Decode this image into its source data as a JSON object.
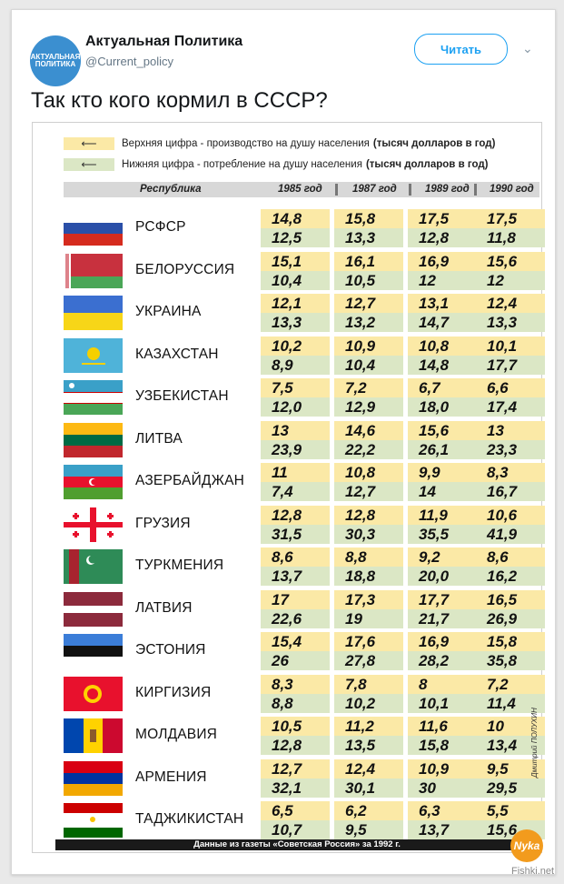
{
  "account": {
    "avatar_text": "АКТУАЛЬНАЯ ПОЛИТИКА",
    "name": "Актуальная Политика",
    "handle": "@Current_policy",
    "follow_label": "Читать"
  },
  "tweet": {
    "text": "Так кто кого кормил в СССР?"
  },
  "infographic": {
    "legend_top": {
      "arrow": "⟵",
      "text": "Верхняя цифра - производство на душу населения",
      "bold": "(тысяч долларов в год)"
    },
    "legend_bottom": {
      "arrow": "⟵",
      "text": "Нижняя цифра - потребление на душу населения",
      "bold": "(тысяч долларов в год)"
    },
    "headers": [
      "Республика",
      "1985 год",
      "1987 год",
      "1989 год",
      "1990 год"
    ],
    "rows": [
      {
        "name": "РСФСР",
        "top": [
          "14,8",
          "15,8",
          "17,5",
          "17,5"
        ],
        "bottom": [
          "12,5",
          "13,3",
          "12,8",
          "11,8"
        ]
      },
      {
        "name": "БЕЛОРУССИЯ",
        "top": [
          "15,1",
          "16,1",
          "16,9",
          "15,6"
        ],
        "bottom": [
          "10,4",
          "10,5",
          "12",
          "12"
        ]
      },
      {
        "name": "УКРАИНА",
        "top": [
          "12,1",
          "12,7",
          "13,1",
          "12,4"
        ],
        "bottom": [
          "13,3",
          "13,2",
          "14,7",
          "13,3"
        ]
      },
      {
        "name": "КАЗАХСТАН",
        "top": [
          "10,2",
          "10,9",
          "10,8",
          "10,1"
        ],
        "bottom": [
          "8,9",
          "10,4",
          "14,8",
          "17,7"
        ]
      },
      {
        "name": "УЗБЕКИСТАН",
        "top": [
          "7,5",
          "7,2",
          "6,7",
          "6,6"
        ],
        "bottom": [
          "12,0",
          "12,9",
          "18,0",
          "17,4"
        ]
      },
      {
        "name": "ЛИТВА",
        "top": [
          "13",
          "14,6",
          "15,6",
          "13"
        ],
        "bottom": [
          "23,9",
          "22,2",
          "26,1",
          "23,3"
        ]
      },
      {
        "name": "АЗЕРБАЙДЖАН",
        "top": [
          "11",
          "10,8",
          "9,9",
          "8,3"
        ],
        "bottom": [
          "7,4",
          "12,7",
          "14",
          "16,7"
        ]
      },
      {
        "name": "ГРУЗИЯ",
        "top": [
          "12,8",
          "12,8",
          "11,9",
          "10,6"
        ],
        "bottom": [
          "31,5",
          "30,3",
          "35,5",
          "41,9"
        ]
      },
      {
        "name": "ТУРКМЕНИЯ",
        "top": [
          "8,6",
          "8,8",
          "9,2",
          "8,6"
        ],
        "bottom": [
          "13,7",
          "18,8",
          "20,0",
          "16,2"
        ]
      },
      {
        "name": "ЛАТВИЯ",
        "top": [
          "17",
          "17,3",
          "17,7",
          "16,5"
        ],
        "bottom": [
          "22,6",
          "19",
          "21,7",
          "26,9"
        ]
      },
      {
        "name": "ЭСТОНИЯ",
        "top": [
          "15,4",
          "17,6",
          "16,9",
          "15,8"
        ],
        "bottom": [
          "26",
          "27,8",
          "28,2",
          "35,8"
        ]
      },
      {
        "name": "КИРГИЗИЯ",
        "top": [
          "8,3",
          "7,8",
          "8",
          "7,2"
        ],
        "bottom": [
          "8,8",
          "10,2",
          "10,1",
          "11,4"
        ]
      },
      {
        "name": "МОЛДАВИЯ",
        "top": [
          "10,5",
          "11,2",
          "11,6",
          "10"
        ],
        "bottom": [
          "12,8",
          "13,5",
          "15,8",
          "13,4"
        ]
      },
      {
        "name": "АРМЕНИЯ",
        "top": [
          "12,7",
          "12,4",
          "10,9",
          "9,5"
        ],
        "bottom": [
          "32,1",
          "30,1",
          "30",
          "29,5"
        ]
      },
      {
        "name": "ТАДЖИКИСТАН",
        "top": [
          "6,5",
          "6,2",
          "6,3",
          "5,5"
        ],
        "bottom": [
          "10,7",
          "9,5",
          "13,7",
          "15,6"
        ]
      }
    ],
    "footer": "Данные из газеты «Советская Россия» за 1992 г.",
    "credit": "Дмитрий ПОЛУХИН"
  },
  "watermark": {
    "badge": "Nyka",
    "site": "Fishki.net"
  },
  "colors": {
    "accent": "#1da1f2",
    "production": "#fbe9a6",
    "consumption": "#dbe7c5"
  }
}
